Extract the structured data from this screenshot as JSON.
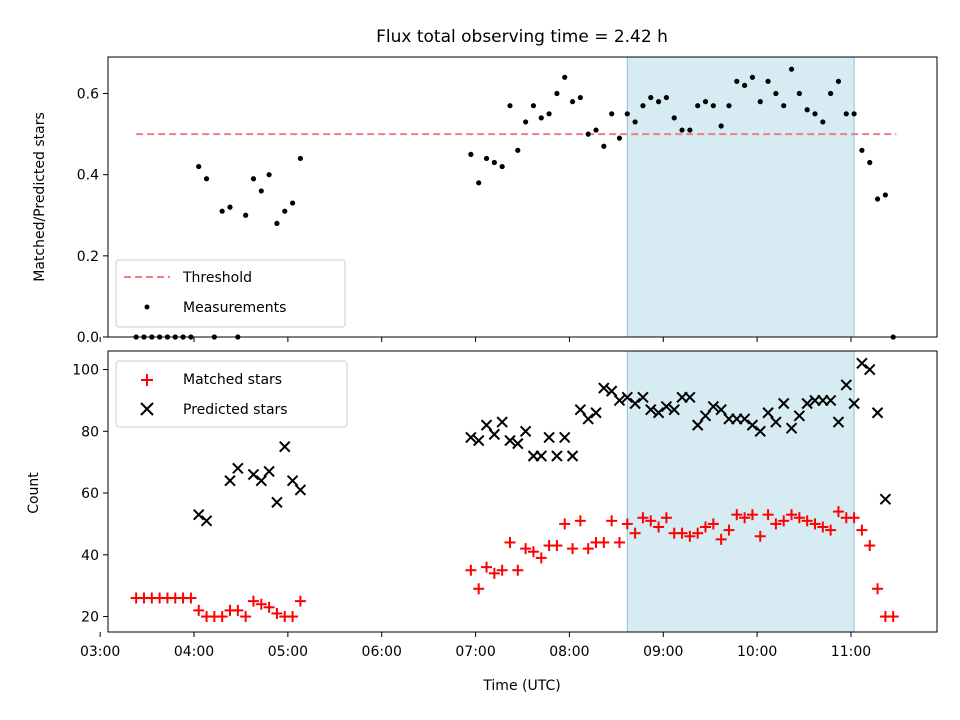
{
  "chart_data": {
    "title": "Flux total observing time = 2.42 h",
    "shaded_interval": [
      "08:37",
      "11:02"
    ],
    "shade_color": "#add8e6",
    "panels": [
      {
        "type": "scatter",
        "ylabel": "Matched/Predicted stars",
        "ylim": [
          0,
          0.69
        ],
        "yticks": [
          "0.0",
          "0.2",
          "0.4",
          "0.6"
        ],
        "threshold": {
          "name": "Threshold",
          "value": 0.5,
          "x_range": [
            "03:23",
            "11:29"
          ],
          "color": "#f08080"
        },
        "legend": [
          "Threshold",
          "Measurements"
        ],
        "legend_position": "lower-left",
        "series": [
          {
            "name": "Measurements",
            "color": "#000000",
            "x": [
              "03:23",
              "03:28",
              "03:33",
              "03:38",
              "03:43",
              "03:48",
              "03:53",
              "03:58",
              "04:03",
              "04:08",
              "04:13",
              "04:18",
              "04:23",
              "04:28",
              "04:33",
              "04:38",
              "04:43",
              "04:48",
              "04:53",
              "04:58",
              "05:03",
              "05:08",
              "06:57",
              "07:02",
              "07:07",
              "07:12",
              "07:17",
              "07:22",
              "07:27",
              "07:32",
              "07:37",
              "07:42",
              "07:47",
              "07:52",
              "07:57",
              "08:02",
              "08:07",
              "08:12",
              "08:17",
              "08:22",
              "08:27",
              "08:32",
              "08:37",
              "08:42",
              "08:47",
              "08:52",
              "08:57",
              "09:02",
              "09:07",
              "09:12",
              "09:17",
              "09:22",
              "09:27",
              "09:32",
              "09:37",
              "09:42",
              "09:47",
              "09:52",
              "09:57",
              "10:02",
              "10:07",
              "10:12",
              "10:17",
              "10:22",
              "10:27",
              "10:32",
              "10:37",
              "10:42",
              "10:47",
              "10:52",
              "10:57",
              "11:02",
              "11:07",
              "11:12",
              "11:17",
              "11:22",
              "11:27"
            ],
            "y": [
              0,
              0,
              0,
              0,
              0,
              0,
              0,
              0,
              0.42,
              0.39,
              0,
              0.31,
              0.32,
              0,
              0.3,
              0.39,
              0.36,
              0.4,
              0.28,
              0.31,
              0.33,
              0.44,
              0.45,
              0.38,
              0.44,
              0.43,
              0.42,
              0.57,
              0.46,
              0.53,
              0.57,
              0.54,
              0.55,
              0.6,
              0.64,
              0.58,
              0.59,
              0.5,
              0.51,
              0.47,
              0.55,
              0.49,
              0.55,
              0.53,
              0.57,
              0.59,
              0.58,
              0.59,
              0.54,
              0.51,
              0.51,
              0.57,
              0.58,
              0.57,
              0.52,
              0.57,
              0.63,
              0.62,
              0.64,
              0.58,
              0.63,
              0.6,
              0.57,
              0.66,
              0.6,
              0.56,
              0.55,
              0.53,
              0.6,
              0.63,
              0.55,
              0.55,
              0.46,
              0.43,
              0.34,
              0.35,
              0
            ]
          }
        ]
      },
      {
        "type": "scatter",
        "ylabel": "Count",
        "xlabel": "Time (UTC)",
        "ylim": [
          15,
          106
        ],
        "yticks": [
          "20",
          "40",
          "60",
          "80",
          "100"
        ],
        "xticks": [
          "03:00",
          "04:00",
          "05:00",
          "06:00",
          "07:00",
          "08:00",
          "09:00",
          "10:00",
          "11:00"
        ],
        "legend": [
          "Matched stars",
          "Predicted stars"
        ],
        "legend_position": "upper-left",
        "series": [
          {
            "name": "Matched stars",
            "marker": "+",
            "color": "#ff0000",
            "x": [
              "03:23",
              "03:28",
              "03:33",
              "03:38",
              "03:43",
              "03:48",
              "03:53",
              "03:58",
              "04:03",
              "04:08",
              "04:13",
              "04:18",
              "04:23",
              "04:28",
              "04:33",
              "04:38",
              "04:43",
              "04:48",
              "04:53",
              "04:58",
              "05:03",
              "05:08",
              "06:57",
              "07:02",
              "07:07",
              "07:12",
              "07:17",
              "07:22",
              "07:27",
              "07:32",
              "07:37",
              "07:42",
              "07:47",
              "07:52",
              "07:57",
              "08:02",
              "08:07",
              "08:12",
              "08:17",
              "08:22",
              "08:27",
              "08:32",
              "08:37",
              "08:42",
              "08:47",
              "08:52",
              "08:57",
              "09:02",
              "09:07",
              "09:12",
              "09:17",
              "09:22",
              "09:27",
              "09:32",
              "09:37",
              "09:42",
              "09:47",
              "09:52",
              "09:57",
              "10:02",
              "10:07",
              "10:12",
              "10:17",
              "10:22",
              "10:27",
              "10:32",
              "10:37",
              "10:42",
              "10:47",
              "10:52",
              "10:57",
              "11:02",
              "11:07",
              "11:12",
              "11:17",
              "11:22",
              "11:27"
            ],
            "y": [
              26,
              26,
              26,
              26,
              26,
              26,
              26,
              26,
              22,
              20,
              20,
              20,
              22,
              22,
              20,
              25,
              24,
              23,
              21,
              20,
              20,
              25,
              35,
              29,
              36,
              34,
              35,
              44,
              35,
              42,
              41,
              39,
              43,
              43,
              50,
              42,
              51,
              42,
              44,
              44,
              51,
              44,
              50,
              47,
              52,
              51,
              49,
              52,
              47,
              47,
              46,
              47,
              49,
              50,
              45,
              48,
              53,
              52,
              53,
              46,
              53,
              50,
              51,
              53,
              52,
              51,
              50,
              49,
              48,
              54,
              52,
              52,
              48,
              43,
              29,
              20,
              20
            ]
          },
          {
            "name": "Predicted stars",
            "marker": "x",
            "color": "#000000",
            "x": [
              "04:03",
              "04:08",
              "04:23",
              "04:28",
              "04:38",
              "04:43",
              "04:48",
              "04:53",
              "04:58",
              "05:03",
              "05:08",
              "06:57",
              "07:02",
              "07:07",
              "07:12",
              "07:17",
              "07:22",
              "07:27",
              "07:32",
              "07:37",
              "07:42",
              "07:47",
              "07:52",
              "07:57",
              "08:02",
              "08:07",
              "08:12",
              "08:17",
              "08:22",
              "08:27",
              "08:32",
              "08:37",
              "08:42",
              "08:47",
              "08:52",
              "08:57",
              "09:02",
              "09:07",
              "09:12",
              "09:17",
              "09:22",
              "09:27",
              "09:32",
              "09:37",
              "09:42",
              "09:47",
              "09:52",
              "09:57",
              "10:02",
              "10:07",
              "10:12",
              "10:17",
              "10:22",
              "10:27",
              "10:32",
              "10:37",
              "10:42",
              "10:47",
              "10:52",
              "10:57",
              "11:02",
              "11:07",
              "11:12",
              "11:17",
              "11:22"
            ],
            "y": [
              53,
              51,
              64,
              68,
              66,
              64,
              67,
              57,
              75,
              64,
              61,
              78,
              77,
              82,
              79,
              83,
              77,
              76,
              80,
              72,
              72,
              78,
              72,
              78,
              72,
              87,
              84,
              86,
              94,
              93,
              90,
              91,
              89,
              91,
              87,
              86,
              88,
              87,
              91,
              91,
              82,
              85,
              88,
              87,
              84,
              84,
              84,
              82,
              80,
              86,
              83,
              89,
              81,
              85,
              89,
              90,
              90,
              90,
              83,
              95,
              89,
              102,
              100,
              86,
              58
            ]
          }
        ]
      }
    ]
  }
}
